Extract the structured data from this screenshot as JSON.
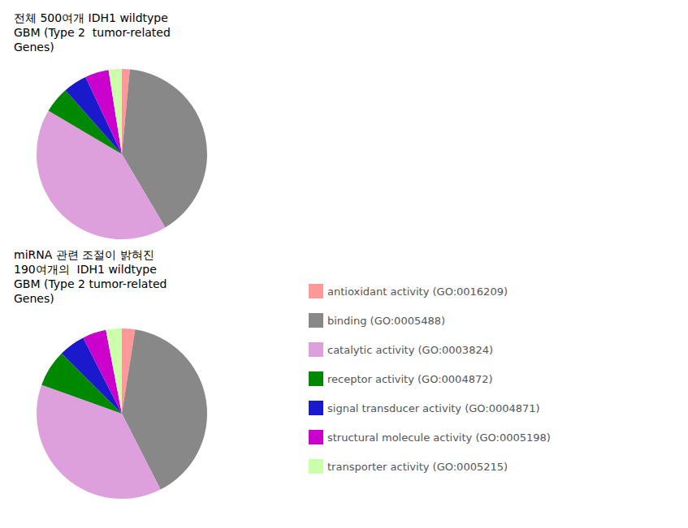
{
  "chart_data": [
    {
      "type": "pie",
      "title": "전체 500여개 IDH1 wildtype\nGBM (Type 2  tumor-related\nGenes)",
      "categories": [
        "antioxidant activity (GO:0016209)",
        "binding (GO:0005488)",
        "catalytic activity (GO:0003824)",
        "receptor activity (GO:0004872)",
        "signal transducer activity (GO:0004871)",
        "structural molecule activity (GO:0005198)",
        "transporter activity (GO:0005215)"
      ],
      "values": [
        1.5,
        40,
        42,
        5,
        4.5,
        4.5,
        2.5
      ],
      "colors": [
        "#FF9999",
        "#888888",
        "#DDA0DD",
        "#008800",
        "#1a1aCC",
        "#CC00CC",
        "#CCFFAA"
      ],
      "legend": "right"
    },
    {
      "type": "pie",
      "title": "miRNA 관련 조절이 밝혀진\n190여개의  IDH1 wildtype\nGBM (Type 2 tumor-related\nGenes)",
      "categories": [
        "antioxidant activity (GO:0016209)",
        "binding (GO:0005488)",
        "catalytic activity (GO:0003824)",
        "receptor activity (GO:0004872)",
        "signal transducer activity (GO:0004871)",
        "structural molecule activity (GO:0005198)",
        "transporter activity (GO:0005215)"
      ],
      "values": [
        2.5,
        40,
        38,
        7,
        5,
        4.5,
        3
      ],
      "colors": [
        "#FF9999",
        "#888888",
        "#DDA0DD",
        "#008800",
        "#1a1aCC",
        "#CC00CC",
        "#CCFFAA"
      ],
      "legend": "right"
    }
  ]
}
